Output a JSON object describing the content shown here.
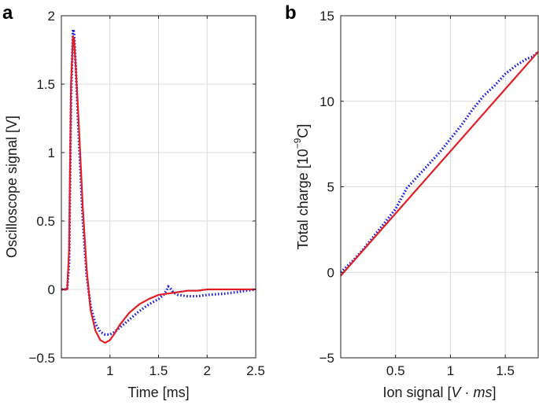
{
  "chart_data": [
    {
      "panel": "a",
      "type": "line",
      "xlabel": "Time [ms]",
      "ylabel": "Oscilloscope signal [V]",
      "xlim": [
        0.5,
        2.5
      ],
      "ylim": [
        -0.5,
        2.0
      ],
      "xticks": [
        1,
        1.5,
        2,
        2.5
      ],
      "xtick_labels": [
        "1",
        "1.5",
        "2",
        "2.5"
      ],
      "yticks": [
        -0.5,
        0,
        0.5,
        1,
        1.5,
        2
      ],
      "ytick_labels": [
        "−0.5",
        "0",
        "0.5",
        "1",
        "1.5",
        "2"
      ],
      "grid": true,
      "legend": "none",
      "series": [
        {
          "style": "dotted",
          "color": "#1a1ae6",
          "x": [
            0.5,
            0.54,
            0.56,
            0.58,
            0.6,
            0.62,
            0.63,
            0.65,
            0.68,
            0.72,
            0.76,
            0.8,
            0.85,
            0.9,
            0.95,
            1.0,
            1.05,
            1.1,
            1.2,
            1.3,
            1.4,
            1.5,
            1.55,
            1.58,
            1.6,
            1.62,
            1.65,
            1.7,
            1.8,
            1.9,
            2.0,
            2.2,
            2.4,
            2.5
          ],
          "y": [
            0.0,
            0.0,
            0.0,
            0.2,
            1.4,
            1.9,
            1.88,
            1.6,
            1.1,
            0.5,
            0.1,
            -0.12,
            -0.25,
            -0.31,
            -0.33,
            -0.33,
            -0.31,
            -0.28,
            -0.22,
            -0.16,
            -0.11,
            -0.07,
            -0.04,
            -0.01,
            0.02,
            0.01,
            -0.02,
            -0.04,
            -0.05,
            -0.05,
            -0.04,
            -0.03,
            -0.01,
            0.0
          ]
        },
        {
          "style": "solid",
          "color": "#e01f26",
          "x": [
            0.5,
            0.54,
            0.56,
            0.58,
            0.6,
            0.62,
            0.63,
            0.65,
            0.68,
            0.72,
            0.76,
            0.8,
            0.85,
            0.9,
            0.95,
            1.0,
            1.05,
            1.1,
            1.2,
            1.3,
            1.4,
            1.5,
            1.6,
            1.7,
            1.8,
            1.9,
            2.0,
            2.2,
            2.4,
            2.5
          ],
          "y": [
            0.0,
            0.0,
            0.0,
            0.3,
            1.5,
            1.85,
            1.83,
            1.6,
            1.2,
            0.6,
            0.15,
            -0.15,
            -0.3,
            -0.37,
            -0.39,
            -0.37,
            -0.32,
            -0.26,
            -0.17,
            -0.11,
            -0.07,
            -0.04,
            -0.03,
            -0.02,
            -0.01,
            -0.01,
            0.0,
            0.0,
            0.0,
            0.0
          ]
        }
      ]
    },
    {
      "panel": "b",
      "type": "line",
      "xlabel": "Ion signal [V · ms]",
      "xlabel_parts": {
        "prefix": "Ion signal [",
        "v": "V",
        "dot": " · ",
        "ms": "ms",
        "suffix": "]"
      },
      "ylabel": "Total charge [10⁻⁹C]",
      "ylabel_parts": {
        "prefix": "Total charge [10",
        "exp": "−9",
        "suffix": "C]"
      },
      "xlim": [
        0.0,
        1.8
      ],
      "ylim": [
        -5,
        15
      ],
      "xticks": [
        0.5,
        1,
        1.5
      ],
      "xtick_labels": [
        "0.5",
        "1",
        "1.5"
      ],
      "yticks": [
        -5,
        0,
        5,
        10,
        15
      ],
      "ytick_labels": [
        "−5",
        "0",
        "5",
        "10",
        "15"
      ],
      "grid": true,
      "legend": "none",
      "series": [
        {
          "style": "dotted",
          "color": "#1a1ae6",
          "x": [
            0.0,
            0.1,
            0.2,
            0.3,
            0.4,
            0.5,
            0.55,
            0.6,
            0.7,
            0.8,
            0.9,
            1.0,
            1.1,
            1.2,
            1.3,
            1.4,
            1.5,
            1.6,
            1.7,
            1.75,
            1.8
          ],
          "y": [
            0.0,
            0.6,
            1.3,
            2.1,
            2.9,
            3.7,
            4.3,
            4.9,
            5.6,
            6.3,
            7.0,
            7.8,
            8.6,
            9.5,
            10.3,
            10.9,
            11.6,
            12.1,
            12.5,
            12.6,
            12.9
          ]
        },
        {
          "style": "solid",
          "color": "#e01f26",
          "x": [
            0.0,
            1.8
          ],
          "y": [
            -0.2,
            12.9
          ]
        }
      ]
    }
  ]
}
